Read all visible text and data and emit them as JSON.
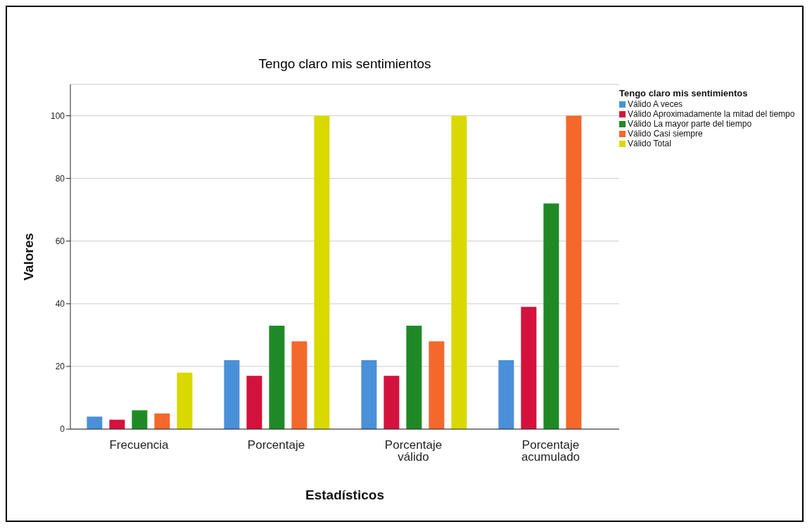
{
  "chart_data": {
    "type": "bar",
    "title": "Tengo claro mis sentimientos",
    "xlabel": "Estadísticos",
    "ylabel": "Valores",
    "legend_title": "Tengo claro mis sentimientos",
    "categories": [
      "Frecuencia",
      "Porcentaje",
      "Porcentaje válido",
      "Porcentaje acumulado"
    ],
    "series": [
      {
        "name": "Válido A veces",
        "color": "#4a90d9",
        "values": [
          4,
          22,
          22,
          22
        ]
      },
      {
        "name": "Válido Aproximadamente la mitad del tiempo",
        "color": "#d4123d",
        "values": [
          3,
          17,
          17,
          39
        ]
      },
      {
        "name": "Válido La mayor parte del tiempo",
        "color": "#1f8a25",
        "values": [
          6,
          33,
          33,
          72
        ]
      },
      {
        "name": "Válido Casi siempre",
        "color": "#f4682c",
        "values": [
          5,
          28,
          28,
          100
        ]
      },
      {
        "name": "Válido Total",
        "color": "#d9d900",
        "values": [
          18,
          100,
          100,
          null
        ]
      }
    ],
    "ylim": [
      0,
      110
    ],
    "yticks": [
      0,
      20,
      40,
      60,
      80,
      100
    ],
    "grid": "y",
    "legend": "top right"
  }
}
